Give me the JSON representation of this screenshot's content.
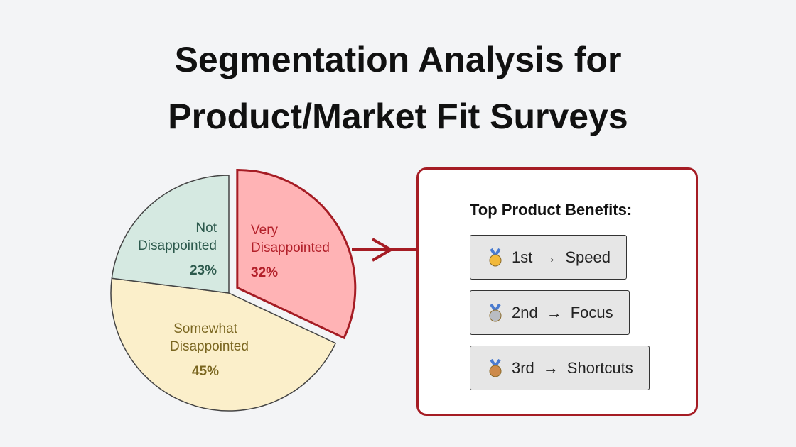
{
  "chart_data": {
    "type": "pie",
    "title": "Segmentation Analysis for Product/Market Fit Surveys",
    "categories": [
      "Very Disappointed",
      "Somewhat Disappointed",
      "Not Disappointed"
    ],
    "values": [
      32,
      45,
      23
    ],
    "value_labels": [
      "32%",
      "45%",
      "23%"
    ],
    "colors": [
      "#ffb3b5",
      "#fbefca",
      "#d5e9e1"
    ],
    "label_colors": [
      "#b3202a",
      "#7a6620",
      "#2d5a4d"
    ],
    "explode": [
      true,
      false,
      false
    ]
  },
  "panel": {
    "title": "Top Product Benefits:",
    "arrow": "→",
    "items": [
      {
        "rank": "1st",
        "benefit": "Speed"
      },
      {
        "rank": "2nd",
        "benefit": "Focus"
      },
      {
        "rank": "3rd",
        "benefit": "Shortcuts"
      }
    ]
  }
}
